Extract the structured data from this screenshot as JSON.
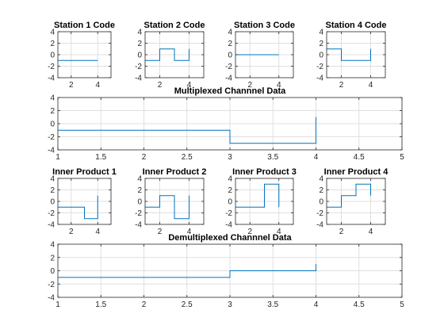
{
  "figure": {
    "colors": {
      "line": "#0072bd",
      "axes": "#262626",
      "grid": "#dfdfdf",
      "background": "#ffffff"
    }
  },
  "chart_data": [
    {
      "type": "line",
      "title": "Station 1 Code",
      "xlim": [
        1,
        5
      ],
      "ylim": [
        -4,
        4
      ],
      "xticks": [
        2,
        4
      ],
      "yticks": [
        -4,
        -2,
        0,
        2,
        4
      ],
      "grid": true,
      "x": [
        1,
        4
      ],
      "y": [
        -1,
        -1
      ]
    },
    {
      "type": "line",
      "title": "Station 2 Code",
      "xlim": [
        1,
        5
      ],
      "ylim": [
        -4,
        4
      ],
      "xticks": [
        2,
        4
      ],
      "yticks": [
        -4,
        -2,
        0,
        2,
        4
      ],
      "grid": true,
      "x": [
        1,
        2,
        2,
        3,
        3,
        4,
        4
      ],
      "y": [
        -1,
        -1,
        1,
        1,
        -1,
        -1,
        1
      ]
    },
    {
      "type": "line",
      "title": "Station 3 Code",
      "xlim": [
        1,
        5
      ],
      "ylim": [
        -4,
        4
      ],
      "xticks": [
        2,
        4
      ],
      "yticks": [
        -4,
        -2,
        0,
        2,
        4
      ],
      "grid": true,
      "x": [
        1,
        4
      ],
      "y": [
        0,
        0
      ]
    },
    {
      "type": "line",
      "title": "Station 4 Code",
      "xlim": [
        1,
        5
      ],
      "ylim": [
        -4,
        4
      ],
      "xticks": [
        2,
        4
      ],
      "yticks": [
        -4,
        -2,
        0,
        2,
        4
      ],
      "grid": true,
      "x": [
        1,
        2,
        2,
        4,
        4
      ],
      "y": [
        1,
        1,
        -1,
        -1,
        1
      ]
    },
    {
      "type": "line",
      "title": "Multiplexed Channnel Data",
      "xlim": [
        1,
        5
      ],
      "ylim": [
        -4,
        4
      ],
      "xticks": [
        1,
        1.5,
        2,
        2.5,
        3,
        3.5,
        4,
        4.5,
        5
      ],
      "yticks": [
        -4,
        -2,
        0,
        2,
        4
      ],
      "grid": true,
      "x": [
        1,
        3,
        3,
        4,
        4
      ],
      "y": [
        -1,
        -1,
        -3,
        -3,
        1
      ]
    },
    {
      "type": "line",
      "title": "Inner Product 1",
      "xlim": [
        1,
        5
      ],
      "ylim": [
        -4,
        4
      ],
      "xticks": [
        2,
        4
      ],
      "yticks": [
        -4,
        -2,
        0,
        2,
        4
      ],
      "grid": true,
      "x": [
        1,
        3,
        3,
        4,
        4
      ],
      "y": [
        -1,
        -1,
        -3,
        -3,
        1
      ]
    },
    {
      "type": "line",
      "title": "Inner Product 2",
      "xlim": [
        1,
        5
      ],
      "ylim": [
        -4,
        4
      ],
      "xticks": [
        2,
        4
      ],
      "yticks": [
        -4,
        -2,
        0,
        2,
        4
      ],
      "grid": true,
      "x": [
        1,
        2,
        2,
        3,
        3,
        4,
        4
      ],
      "y": [
        -1,
        -1,
        1,
        1,
        -3,
        -3,
        1
      ]
    },
    {
      "type": "line",
      "title": "Inner Product 3",
      "xlim": [
        1,
        5
      ],
      "ylim": [
        -4,
        4
      ],
      "xticks": [
        2,
        4
      ],
      "yticks": [
        -4,
        -2,
        0,
        2,
        4
      ],
      "grid": true,
      "x": [
        1,
        3,
        3,
        4,
        4
      ],
      "y": [
        -1,
        -1,
        3,
        3,
        -1
      ]
    },
    {
      "type": "line",
      "title": "Inner Product 4",
      "xlim": [
        1,
        5
      ],
      "ylim": [
        -4,
        4
      ],
      "xticks": [
        2,
        4
      ],
      "yticks": [
        -4,
        -2,
        0,
        2,
        4
      ],
      "grid": true,
      "x": [
        1,
        2,
        2,
        3,
        3,
        4,
        4
      ],
      "y": [
        -1,
        -1,
        1,
        1,
        3,
        3,
        1
      ]
    },
    {
      "type": "line",
      "title": "Demultiplexed Channnel Data",
      "xlim": [
        1,
        5
      ],
      "ylim": [
        -4,
        4
      ],
      "xticks": [
        1,
        1.5,
        2,
        2.5,
        3,
        3.5,
        4,
        4.5,
        5
      ],
      "yticks": [
        -4,
        -2,
        0,
        2,
        4
      ],
      "grid": true,
      "x": [
        1,
        3,
        3,
        4,
        4
      ],
      "y": [
        -1,
        -1,
        0,
        0,
        1
      ]
    }
  ]
}
